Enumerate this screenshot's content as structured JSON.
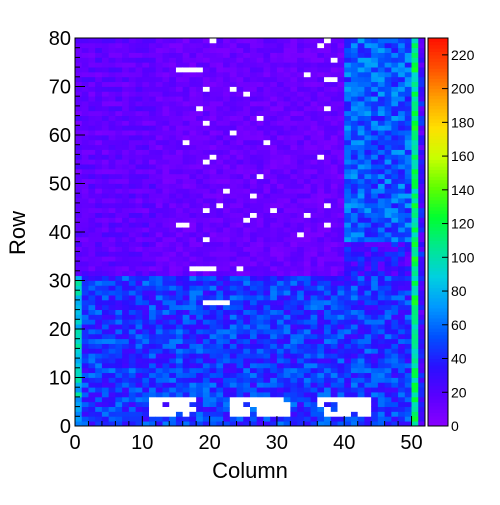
{
  "chart_data": {
    "type": "heatmap",
    "title": "",
    "xlabel": "Column",
    "ylabel": "Row",
    "x_bins": 52,
    "y_bins": 80,
    "xlim": [
      0,
      52
    ],
    "ylim": [
      0,
      80
    ],
    "x_ticks": [
      0,
      10,
      20,
      30,
      40,
      50
    ],
    "y_ticks": [
      0,
      10,
      20,
      30,
      40,
      50,
      60,
      70,
      80
    ],
    "x_tick_labels": [
      "0",
      "10",
      "20",
      "30",
      "40",
      "50"
    ],
    "y_tick_labels": [
      "0",
      "10",
      "20",
      "30",
      "40",
      "50",
      "60",
      "70",
      "80"
    ],
    "colorbar": {
      "min": 0,
      "max": 230,
      "ticks": [
        0,
        20,
        40,
        60,
        80,
        100,
        120,
        140,
        160,
        180,
        200,
        220
      ],
      "tick_labels": [
        "0",
        "20",
        "40",
        "60",
        "80",
        "100",
        "120",
        "140",
        "160",
        "180",
        "200",
        "220"
      ],
      "palette": [
        "#8a00ff",
        "#5a00ff",
        "#2a10ff",
        "#0050ff",
        "#0098ff",
        "#00d0e0",
        "#00e890",
        "#00ff30",
        "#60ff00",
        "#c8ff00",
        "#ffe000",
        "#ffa000",
        "#ff5000",
        "#ff1000"
      ]
    },
    "empty_cell_color": "#ffffff",
    "regions": [
      {
        "name": "upper-left",
        "cols": [
          0,
          40
        ],
        "rows": [
          31,
          80
        ],
        "typical_value": 12
      },
      {
        "name": "upper-right",
        "cols": [
          40,
          51
        ],
        "rows": [
          38,
          80
        ],
        "typical_value": 55
      },
      {
        "name": "lower",
        "cols": [
          0,
          51
        ],
        "rows": [
          0,
          31
        ],
        "typical_value": 45
      },
      {
        "name": "right-edge-column",
        "cols": [
          50,
          51
        ],
        "rows": [
          0,
          80
        ],
        "typical_value": 110
      }
    ],
    "empty_blocks": [
      {
        "cols": [
          11,
          18
        ],
        "rows": [
          2,
          6
        ]
      },
      {
        "cols": [
          23,
          32
        ],
        "rows": [
          2,
          6
        ]
      },
      {
        "cols": [
          36,
          44
        ],
        "rows": [
          2,
          6
        ]
      }
    ],
    "empty_cells": [
      [
        15,
        73
      ],
      [
        16,
        73
      ],
      [
        17,
        73
      ],
      [
        18,
        73
      ],
      [
        19,
        25
      ],
      [
        20,
        25
      ],
      [
        21,
        25
      ],
      [
        22,
        25
      ],
      [
        17,
        32
      ],
      [
        18,
        32
      ],
      [
        19,
        32
      ],
      [
        20,
        32
      ],
      [
        24,
        32
      ],
      [
        15,
        41
      ],
      [
        16,
        41
      ],
      [
        25,
        42
      ],
      [
        26,
        43
      ],
      [
        37,
        41
      ],
      [
        19,
        44
      ],
      [
        21,
        45
      ],
      [
        26,
        47
      ],
      [
        37,
        45
      ],
      [
        19,
        38
      ],
      [
        19,
        54
      ],
      [
        20,
        55
      ],
      [
        27,
        51
      ],
      [
        36,
        55
      ],
      [
        19,
        62
      ],
      [
        23,
        60
      ],
      [
        27,
        63
      ],
      [
        37,
        65
      ],
      [
        19,
        69
      ],
      [
        23,
        69
      ],
      [
        37,
        71
      ],
      [
        38,
        71
      ],
      [
        38,
        75
      ],
      [
        34,
        72
      ],
      [
        36,
        78
      ],
      [
        37,
        79
      ],
      [
        20,
        79
      ],
      [
        16,
        58
      ],
      [
        22,
        48
      ],
      [
        33,
        39
      ],
      [
        34,
        43
      ],
      [
        29,
        44
      ],
      [
        28,
        58
      ],
      [
        25,
        68
      ],
      [
        18,
        65
      ]
    ]
  }
}
